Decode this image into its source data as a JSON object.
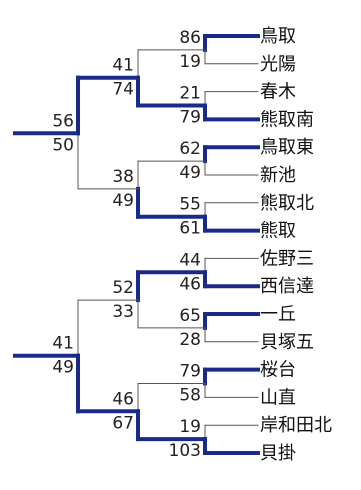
{
  "bracket": {
    "colors": {
      "winner_line": "#1a2a8a",
      "loser_line": "#555555",
      "text": "#222222"
    },
    "teams": [
      "鳥取",
      "光陽",
      "春木",
      "熊取南",
      "鳥取東",
      "新池",
      "熊取北",
      "熊取",
      "佐野三",
      "西信達",
      "一丘",
      "貝塚五",
      "桜台",
      "山直",
      "岸和田北",
      "貝掛"
    ],
    "round1": [
      {
        "top_score": "86",
        "bottom_score": "19",
        "winner": "top"
      },
      {
        "top_score": "21",
        "bottom_score": "79",
        "winner": "bottom"
      },
      {
        "top_score": "62",
        "bottom_score": "49",
        "winner": "top"
      },
      {
        "top_score": "55",
        "bottom_score": "61",
        "winner": "bottom"
      },
      {
        "top_score": "44",
        "bottom_score": "46",
        "winner": "bottom"
      },
      {
        "top_score": "65",
        "bottom_score": "28",
        "winner": "top"
      },
      {
        "top_score": "79",
        "bottom_score": "58",
        "winner": "top"
      },
      {
        "top_score": "19",
        "bottom_score": "103",
        "winner": "bottom"
      }
    ],
    "round2": [
      {
        "top_score": "41",
        "bottom_score": "74",
        "winner": "bottom"
      },
      {
        "top_score": "38",
        "bottom_score": "49",
        "winner": "bottom"
      },
      {
        "top_score": "52",
        "bottom_score": "33",
        "winner": "top"
      },
      {
        "top_score": "46",
        "bottom_score": "67",
        "winner": "bottom"
      }
    ],
    "round3": [
      {
        "top_score": "56",
        "bottom_score": "50",
        "winner": "top"
      },
      {
        "top_score": "41",
        "bottom_score": "49",
        "winner": "bottom"
      }
    ]
  }
}
